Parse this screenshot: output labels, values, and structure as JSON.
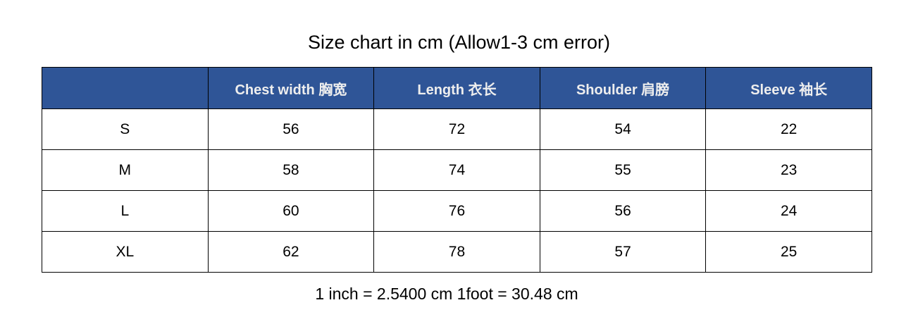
{
  "title": "Size chart in cm (Allow1-3 cm error)",
  "colors": {
    "header_bg": "#2F5597",
    "header_text": "#EEEEEE"
  },
  "table": {
    "headers": [
      "",
      "Chest width  胸宽",
      "Length  衣长",
      "Shoulder  肩膀",
      "Sleeve  袖长"
    ],
    "rows": [
      [
        "S",
        "56",
        "72",
        "54",
        "22"
      ],
      [
        "M",
        "58",
        "74",
        "55",
        "23"
      ],
      [
        "L",
        "60",
        "76",
        "56",
        "24"
      ],
      [
        "XL",
        "62",
        "78",
        "57",
        "25"
      ]
    ]
  },
  "footer": "1 inch = 2.5400 cm 1foot = 30.48 cm"
}
